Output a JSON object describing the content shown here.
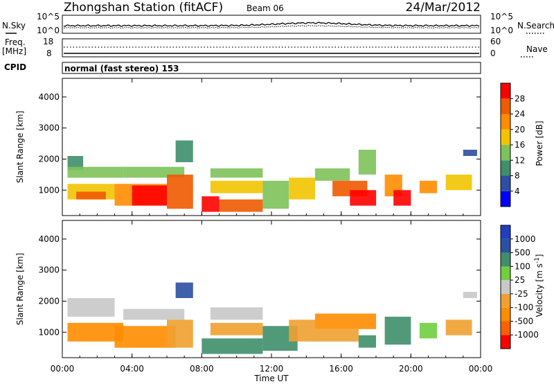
{
  "header": {
    "station": "Zhongshan Station (fitACF)",
    "beam": "Beam 06",
    "date": "24/Mar/2012"
  },
  "noise_panel": {
    "left_label": "N.Sky",
    "right_label": "N.Search",
    "ytick_top": "10^5",
    "ytick_bottom": "10^0"
  },
  "freq_panel": {
    "left_label_1": "Freq.",
    "left_label_2": "[MHz]",
    "left_tick_top": "18",
    "left_tick_bottom": "8",
    "right_label": "Nave",
    "right_tick_top": "60",
    "right_tick_bottom": "0"
  },
  "cpid_panel": {
    "label": "CPID",
    "mode_text": "normal (fast stereo) 153"
  },
  "colors": {
    "power": [
      "#0000ff",
      "#2b4fa3",
      "#3e8f6a",
      "#7dc25a",
      "#f2c400",
      "#ff8c00",
      "#f05a00",
      "#ff0000"
    ],
    "velocity": [
      "#ff0000",
      "#ff6000",
      "#ff8c00",
      "#f0a030",
      "#c8c8c8",
      "#6fcf3f",
      "#3e8f6a",
      "#2b4fa3",
      "#1f3fbf"
    ]
  },
  "chart_data": [
    {
      "type": "heatmap",
      "title": "Power",
      "xlabel": "",
      "ylabel": "Slant Range [km]",
      "xlim": [
        0,
        24
      ],
      "ylim": [
        180,
        4600
      ],
      "x_ticks": [
        "00:00",
        "04:00",
        "08:00",
        "12:00",
        "16:00",
        "20:00",
        "00:00"
      ],
      "y_ticks": [
        1000,
        2000,
        3000,
        4000
      ],
      "colorbar": {
        "label": "Power [dB]",
        "ticks": [
          "28",
          "24",
          "20",
          "16",
          "12",
          "8",
          "4"
        ],
        "values": [
          28,
          24,
          20,
          16,
          12,
          8,
          4
        ]
      },
      "regions": [
        {
          "x": [
            0.3,
            1.2
          ],
          "y": [
            1650,
            2100
          ],
          "level": 2
        },
        {
          "x": [
            0.3,
            3.5
          ],
          "y": [
            1400,
            1750
          ],
          "level": 3
        },
        {
          "x": [
            0.3,
            3.0
          ],
          "y": [
            700,
            1200
          ],
          "level": 4
        },
        {
          "x": [
            0.8,
            2.5
          ],
          "y": [
            700,
            950
          ],
          "level": 6
        },
        {
          "x": [
            3.5,
            7.0
          ],
          "y": [
            1400,
            1750
          ],
          "level": 3
        },
        {
          "x": [
            3.0,
            6.0
          ],
          "y": [
            500,
            1200
          ],
          "level": 5
        },
        {
          "x": [
            4.0,
            6.0
          ],
          "y": [
            500,
            1150
          ],
          "level": 7
        },
        {
          "x": [
            6.0,
            7.5
          ],
          "y": [
            400,
            1500
          ],
          "level": 6
        },
        {
          "x": [
            6.5,
            7.5
          ],
          "y": [
            1900,
            2600
          ],
          "level": 2
        },
        {
          "x": [
            8.0,
            9.0
          ],
          "y": [
            300,
            800
          ],
          "level": 7
        },
        {
          "x": [
            9.0,
            11.5
          ],
          "y": [
            300,
            700
          ],
          "level": 6
        },
        {
          "x": [
            8.5,
            11.5
          ],
          "y": [
            1400,
            1700
          ],
          "level": 3
        },
        {
          "x": [
            8.5,
            11.5
          ],
          "y": [
            900,
            1300
          ],
          "level": 4
        },
        {
          "x": [
            11.5,
            13.0
          ],
          "y": [
            400,
            1300
          ],
          "level": 3
        },
        {
          "x": [
            13.0,
            14.5
          ],
          "y": [
            700,
            1400
          ],
          "level": 4
        },
        {
          "x": [
            14.5,
            16.5
          ],
          "y": [
            1300,
            1700
          ],
          "level": 3
        },
        {
          "x": [
            15.5,
            17.5
          ],
          "y": [
            800,
            1300
          ],
          "level": 6
        },
        {
          "x": [
            16.5,
            18.0
          ],
          "y": [
            500,
            1000
          ],
          "level": 7
        },
        {
          "x": [
            17.0,
            18.0
          ],
          "y": [
            1500,
            2300
          ],
          "level": 3
        },
        {
          "x": [
            18.5,
            19.5
          ],
          "y": [
            800,
            1500
          ],
          "level": 5
        },
        {
          "x": [
            19.0,
            20.0
          ],
          "y": [
            500,
            1000
          ],
          "level": 7
        },
        {
          "x": [
            20.5,
            21.5
          ],
          "y": [
            900,
            1300
          ],
          "level": 5
        },
        {
          "x": [
            22.0,
            23.5
          ],
          "y": [
            1000,
            1500
          ],
          "level": 4
        },
        {
          "x": [
            23.0,
            23.8
          ],
          "y": [
            2100,
            2300
          ],
          "level": 1
        }
      ]
    },
    {
      "type": "heatmap",
      "title": "Velocity",
      "xlabel": "Time UT",
      "ylabel": "Slant Range [km]",
      "xlim": [
        0,
        24
      ],
      "ylim": [
        180,
        4600
      ],
      "x_ticks": [
        "00:00",
        "04:00",
        "08:00",
        "12:00",
        "16:00",
        "20:00",
        "00:00"
      ],
      "y_ticks": [
        1000,
        2000,
        3000,
        4000
      ],
      "colorbar": {
        "label": "Velocity [m s^-1]",
        "ticks": [
          "1000",
          "500",
          "100",
          "25",
          "-25",
          "-100",
          "-500",
          "-1000"
        ],
        "values": [
          1000,
          500,
          100,
          25,
          -25,
          -100,
          -500,
          -1000
        ]
      },
      "regions": [
        {
          "x": [
            0.3,
            3.0
          ],
          "y": [
            1500,
            2100
          ],
          "level": 4
        },
        {
          "x": [
            0.3,
            3.5
          ],
          "y": [
            700,
            1300
          ],
          "level": 2
        },
        {
          "x": [
            3.0,
            6.5
          ],
          "y": [
            500,
            1200
          ],
          "level": 2
        },
        {
          "x": [
            3.5,
            7.0
          ],
          "y": [
            1400,
            1750
          ],
          "level": 4
        },
        {
          "x": [
            6.0,
            7.5
          ],
          "y": [
            500,
            1400
          ],
          "level": 3
        },
        {
          "x": [
            6.5,
            7.5
          ],
          "y": [
            2100,
            2600
          ],
          "level": 7
        },
        {
          "x": [
            8.0,
            11.5
          ],
          "y": [
            300,
            800
          ],
          "level": 6
        },
        {
          "x": [
            8.5,
            11.5
          ],
          "y": [
            1400,
            1800
          ],
          "level": 4
        },
        {
          "x": [
            8.5,
            11.5
          ],
          "y": [
            900,
            1300
          ],
          "level": 3
        },
        {
          "x": [
            11.5,
            13.5
          ],
          "y": [
            400,
            1200
          ],
          "level": 6
        },
        {
          "x": [
            13.0,
            14.5
          ],
          "y": [
            700,
            1400
          ],
          "level": 3
        },
        {
          "x": [
            14.5,
            18.0
          ],
          "y": [
            1100,
            1600
          ],
          "level": 2
        },
        {
          "x": [
            14.5,
            17.0
          ],
          "y": [
            700,
            1100
          ],
          "level": 3
        },
        {
          "x": [
            17.0,
            18.0
          ],
          "y": [
            500,
            900
          ],
          "level": 6
        },
        {
          "x": [
            18.5,
            20.0
          ],
          "y": [
            600,
            1500
          ],
          "level": 6
        },
        {
          "x": [
            20.5,
            21.5
          ],
          "y": [
            800,
            1300
          ],
          "level": 5
        },
        {
          "x": [
            22.0,
            23.5
          ],
          "y": [
            900,
            1400
          ],
          "level": 3
        },
        {
          "x": [
            23.0,
            23.8
          ],
          "y": [
            2100,
            2300
          ],
          "level": 4
        }
      ]
    }
  ]
}
